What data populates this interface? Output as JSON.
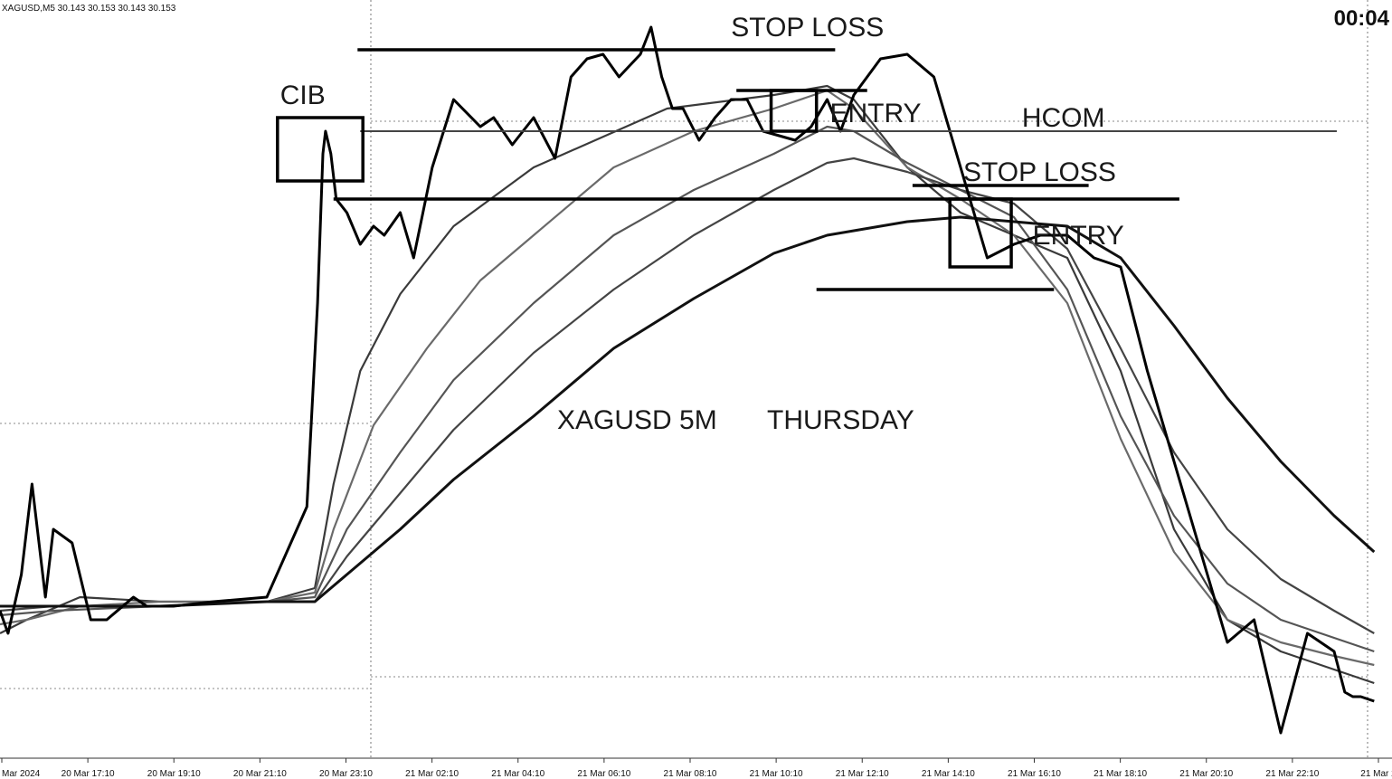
{
  "chart_data": {
    "type": "line",
    "symbol_header": "XAGUSD,M5  30.143 30.153 30.143 30.153",
    "countdown": "00:04",
    "title_annotation": "XAGUSD 5M",
    "day_annotation": "THURSDAY",
    "x_tick_labels": [
      "Mar 2024",
      "20 Mar 17:10",
      "20 Mar 19:10",
      "20 Mar 21:10",
      "20 Mar 23:10",
      "21 Mar 02:10",
      "21 Mar 04:10",
      "21 Mar 06:10",
      "21 Mar 08:10",
      "21 Mar 10:10",
      "21 Mar 12:10",
      "21 Mar 14:10",
      "21 Mar 16:10",
      "21 Mar 18:10",
      "21 Mar 20:10",
      "21 Mar 22:10",
      "21 Mar 2"
    ],
    "price_series": {
      "name": "XAGUSD close",
      "t": [
        0,
        3,
        8,
        12,
        17,
        20,
        27,
        34,
        40,
        50,
        55,
        65,
        80,
        100,
        115,
        119,
        121,
        122,
        124,
        126,
        130,
        135,
        140,
        144,
        150,
        155,
        162,
        170,
        180,
        185,
        192,
        200,
        208,
        214,
        220,
        226,
        232,
        240,
        244,
        248,
        252,
        256,
        262,
        268,
        274,
        280,
        286,
        292,
        298,
        304,
        310,
        315,
        320,
        330,
        340,
        350,
        360,
        370,
        380,
        390,
        400,
        410,
        420,
        430,
        440,
        450,
        460,
        470,
        480,
        490,
        500,
        504,
        507,
        510,
        515
      ],
      "y": [
        0.27,
        0.22,
        0.35,
        0.55,
        0.3,
        0.45,
        0.42,
        0.25,
        0.25,
        0.3,
        0.28,
        0.28,
        0.29,
        0.3,
        0.5,
        0.95,
        1.28,
        1.33,
        1.28,
        1.18,
        1.15,
        1.08,
        1.12,
        1.1,
        1.15,
        1.05,
        1.25,
        1.4,
        1.34,
        1.36,
        1.3,
        1.36,
        1.27,
        1.45,
        1.49,
        1.5,
        1.45,
        1.5,
        1.56,
        1.45,
        1.38,
        1.38,
        1.31,
        1.36,
        1.4,
        1.4,
        1.33,
        1.32,
        1.31,
        1.34,
        1.4,
        1.33,
        1.41,
        1.49,
        1.5,
        1.45,
        1.25,
        1.05,
        1.08,
        1.1,
        1.1,
        1.05,
        1.03,
        0.8,
        0.6,
        0.4,
        0.2,
        0.25,
        0.0,
        0.22,
        0.18,
        0.09,
        0.08,
        0.08,
        0.07
      ]
    },
    "moving_averages": [
      {
        "name": "MA 1",
        "shade": "#3a3a3a",
        "t": [
          0,
          10,
          30,
          60,
          100,
          118,
          125,
          135,
          150,
          170,
          200,
          250,
          290,
          310,
          320,
          340,
          360,
          380,
          400,
          420,
          440,
          460,
          480,
          500,
          515
        ],
        "y": [
          0.22,
          0.25,
          0.3,
          0.29,
          0.29,
          0.32,
          0.55,
          0.8,
          0.97,
          1.12,
          1.25,
          1.38,
          1.41,
          1.43,
          1.4,
          1.25,
          1.15,
          1.1,
          1.05,
          0.8,
          0.45,
          0.25,
          0.18,
          0.14,
          0.11
        ]
      },
      {
        "name": "MA 2",
        "shade": "#6a6a6a",
        "t": [
          0,
          10,
          30,
          60,
          100,
          118,
          125,
          140,
          160,
          180,
          200,
          230,
          260,
          290,
          310,
          320,
          340,
          360,
          380,
          400,
          420,
          440,
          460,
          480,
          500,
          515
        ],
        "y": [
          0.24,
          0.25,
          0.28,
          0.29,
          0.29,
          0.31,
          0.45,
          0.68,
          0.85,
          1.0,
          1.1,
          1.25,
          1.33,
          1.38,
          1.42,
          1.38,
          1.25,
          1.18,
          1.1,
          0.95,
          0.65,
          0.4,
          0.25,
          0.2,
          0.17,
          0.15
        ]
      },
      {
        "name": "MA 3",
        "shade": "#555555",
        "t": [
          0,
          20,
          60,
          100,
          118,
          130,
          150,
          170,
          200,
          230,
          260,
          290,
          310,
          320,
          340,
          360,
          380,
          400,
          420,
          440,
          460,
          480,
          500,
          515
        ],
        "y": [
          0.26,
          0.27,
          0.28,
          0.29,
          0.3,
          0.45,
          0.62,
          0.78,
          0.95,
          1.1,
          1.2,
          1.28,
          1.34,
          1.33,
          1.26,
          1.2,
          1.14,
          0.98,
          0.7,
          0.48,
          0.33,
          0.25,
          0.21,
          0.18
        ]
      },
      {
        "name": "MA 4",
        "shade": "#444444",
        "t": [
          0,
          20,
          60,
          100,
          118,
          130,
          150,
          170,
          200,
          230,
          260,
          290,
          310,
          320,
          340,
          360,
          380,
          400,
          420,
          440,
          460,
          480,
          500,
          515
        ],
        "y": [
          0.27,
          0.28,
          0.28,
          0.29,
          0.29,
          0.39,
          0.53,
          0.67,
          0.84,
          0.98,
          1.1,
          1.2,
          1.26,
          1.27,
          1.24,
          1.2,
          1.17,
          1.07,
          0.85,
          0.62,
          0.45,
          0.34,
          0.27,
          0.22
        ]
      },
      {
        "name": "MA 5",
        "shade": "#111111",
        "t": [
          0,
          20,
          60,
          100,
          118,
          130,
          150,
          170,
          200,
          230,
          260,
          290,
          310,
          320,
          340,
          360,
          380,
          400,
          420,
          440,
          460,
          480,
          500,
          515
        ],
        "y": [
          0.28,
          0.28,
          0.28,
          0.29,
          0.29,
          0.35,
          0.45,
          0.56,
          0.7,
          0.85,
          0.96,
          1.06,
          1.1,
          1.11,
          1.13,
          1.14,
          1.13,
          1.12,
          1.05,
          0.9,
          0.74,
          0.6,
          0.48,
          0.4
        ]
      }
    ],
    "levels": [
      {
        "name": "range-top-line",
        "y": 1.51,
        "t_start": 134,
        "t_end": 313
      },
      {
        "name": "range-bottom-line",
        "y": 1.18,
        "t_start": 125,
        "t_end": 442
      },
      {
        "name": "stop-loss-1-line",
        "y": 1.42,
        "t_start": 276,
        "t_end": 325
      },
      {
        "name": "stop-loss-2-line",
        "y": 1.21,
        "t_start": 342,
        "t_end": 408
      },
      {
        "name": "entry-2-line",
        "y": 0.98,
        "t_start": 306,
        "t_end": 395
      },
      {
        "name": "hcom-line",
        "y": 1.33,
        "t_start": 135,
        "t_end": 501
      }
    ],
    "boxes": [
      {
        "name": "cib-box",
        "t0": 104,
        "t1": 136,
        "y0": 1.22,
        "y1": 1.36
      },
      {
        "name": "entry-1-box",
        "t0": 289,
        "t1": 306,
        "y0": 1.33,
        "y1": 1.42
      },
      {
        "name": "entry-2-box",
        "t0": 356,
        "t1": 379,
        "y0": 1.03,
        "y1": 1.18
      }
    ],
    "annotations": [
      {
        "name": "stop-loss-1-label",
        "text": "STOP LOSS",
        "t": 274,
        "y": 1.54
      },
      {
        "name": "cib-label",
        "text": "CIB",
        "t": 105,
        "y": 1.39
      },
      {
        "name": "entry-1-label",
        "text": "ENTRY",
        "t": 311,
        "y": 1.35
      },
      {
        "name": "hcom-label",
        "text": "HCOM",
        "t": 383,
        "y": 1.34
      },
      {
        "name": "stop-loss-2-label",
        "text": "STOP LOSS",
        "t": 361,
        "y": 1.22
      },
      {
        "name": "entry-2-label",
        "text": "ENTRY",
        "t": 387,
        "y": 1.08
      }
    ]
  }
}
